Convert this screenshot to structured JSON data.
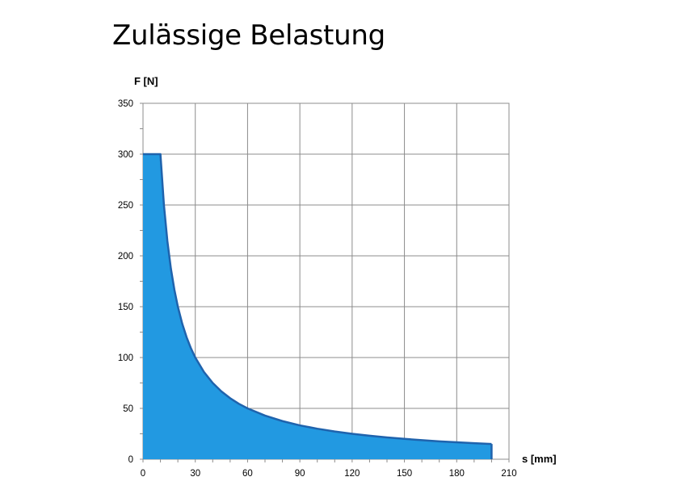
{
  "title": "Zulässige Belastung",
  "chart_data": {
    "type": "area",
    "title": "Zulässige Belastung",
    "xlabel": "s [mm]",
    "ylabel": "F [N]",
    "xlim": [
      0,
      210
    ],
    "ylim": [
      0,
      350
    ],
    "xticks": [
      0,
      30,
      60,
      90,
      120,
      150,
      180,
      210
    ],
    "yticks": [
      0,
      50,
      100,
      150,
      200,
      250,
      300,
      350
    ],
    "grid": true,
    "fill_color": "#2299e1",
    "line_color": "#1f63ad",
    "series": [
      {
        "x": [
          0,
          10,
          12,
          14,
          16,
          18,
          20,
          22.5,
          25,
          27.5,
          30,
          35,
          40,
          45,
          50,
          55,
          60,
          70,
          80,
          90,
          100,
          110,
          120,
          130,
          140,
          150,
          160,
          170,
          180,
          190,
          200
        ],
        "y": [
          300,
          300,
          250,
          214.3,
          187.5,
          166.7,
          150,
          133.3,
          120,
          109.1,
          100,
          85.7,
          75,
          66.7,
          60,
          54.5,
          50,
          42.9,
          37.5,
          33.3,
          30,
          27.3,
          25,
          23.1,
          21.4,
          20,
          18.75,
          17.6,
          16.7,
          15.8,
          15
        ]
      }
    ]
  }
}
